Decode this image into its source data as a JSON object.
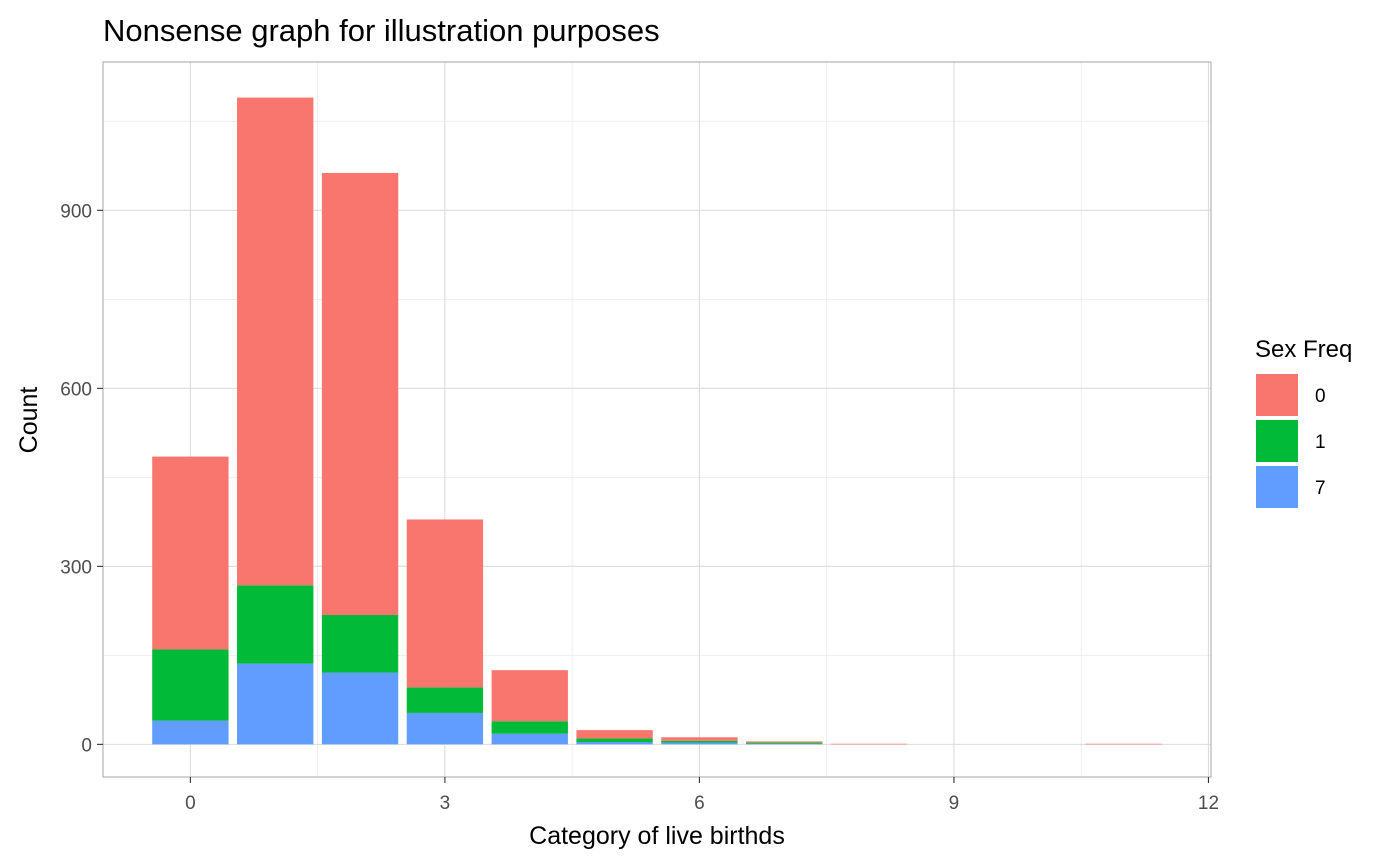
{
  "chart_data": {
    "type": "bar",
    "stacked": true,
    "title": "Nonsense graph for illustration purposes",
    "xlabel": "Category of live birthds",
    "ylabel": "Count",
    "x": [
      0,
      1,
      2,
      3,
      4,
      5,
      6,
      7,
      8,
      11
    ],
    "xlim": [
      -1.03,
      12.03
    ],
    "ylim": [
      -55,
      1150
    ],
    "x_ticks": [
      0,
      3,
      6,
      9,
      12
    ],
    "y_ticks": [
      0,
      300,
      600,
      900
    ],
    "x_tick_labels": [
      "0",
      "3",
      "6",
      "9",
      "12"
    ],
    "y_tick_labels": [
      "0",
      "300",
      "600",
      "900"
    ],
    "grid": true,
    "legend": {
      "title": "Sex Freq",
      "position": "right"
    },
    "series": [
      {
        "name": "0",
        "color": "#F8766D",
        "values": [
          325,
          822,
          745,
          283,
          86,
          14,
          6,
          2,
          1,
          1
        ]
      },
      {
        "name": "1",
        "color": "#00BA38",
        "values": [
          120,
          132,
          97,
          43,
          21,
          6,
          3,
          2,
          0,
          0
        ]
      },
      {
        "name": "7",
        "color": "#619CFF",
        "values": [
          40,
          136,
          121,
          53,
          18,
          4,
          3,
          1,
          0,
          0
        ]
      }
    ]
  }
}
